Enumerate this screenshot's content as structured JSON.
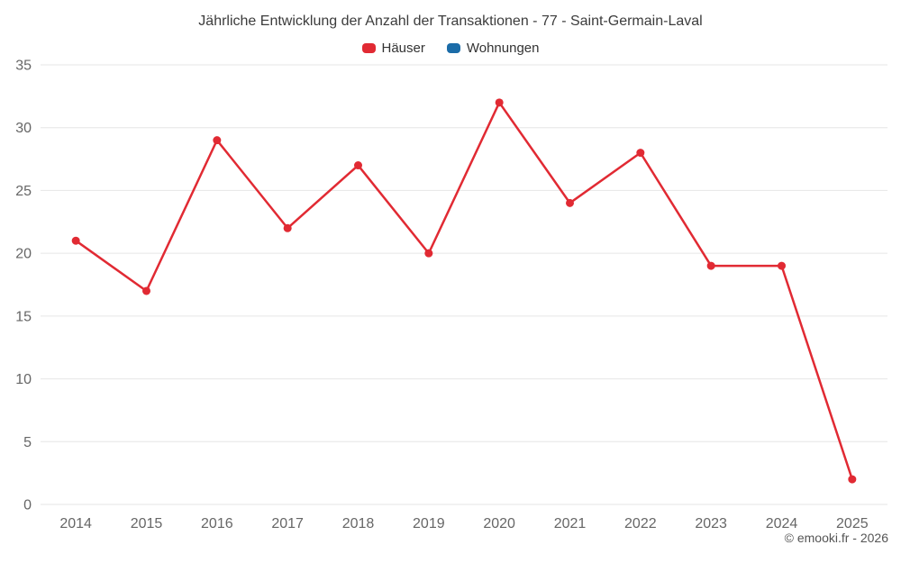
{
  "title": "Jährliche Entwicklung der Anzahl der Transaktionen - 77 - Saint-Germain-Laval",
  "footer": "© emooki.fr - 2026",
  "legend": [
    {
      "label": "Häuser",
      "color": "#e12a33"
    },
    {
      "label": "Wohnungen",
      "color": "#1b6ca8"
    }
  ],
  "chart_data": {
    "type": "line",
    "title": "Jährliche Entwicklung der Anzahl der Transaktionen - 77 - Saint-Germain-Laval",
    "x": [
      "2014",
      "2015",
      "2016",
      "2017",
      "2018",
      "2019",
      "2020",
      "2021",
      "2022",
      "2023",
      "2024",
      "2025"
    ],
    "series": [
      {
        "name": "Häuser",
        "color": "#e12a33",
        "values": [
          21,
          17,
          29,
          22,
          27,
          20,
          32,
          24,
          28,
          19,
          19,
          2
        ]
      },
      {
        "name": "Wohnungen",
        "color": "#1b6ca8",
        "values": []
      }
    ],
    "xlabel": "",
    "ylabel": "",
    "ylim": [
      0,
      35
    ],
    "yticks": [
      0,
      5,
      10,
      15,
      20,
      25,
      30,
      35
    ],
    "grid": true,
    "gridline_color": "#e6e6e6",
    "axis_label_color": "#666666",
    "legend_position": "top"
  }
}
